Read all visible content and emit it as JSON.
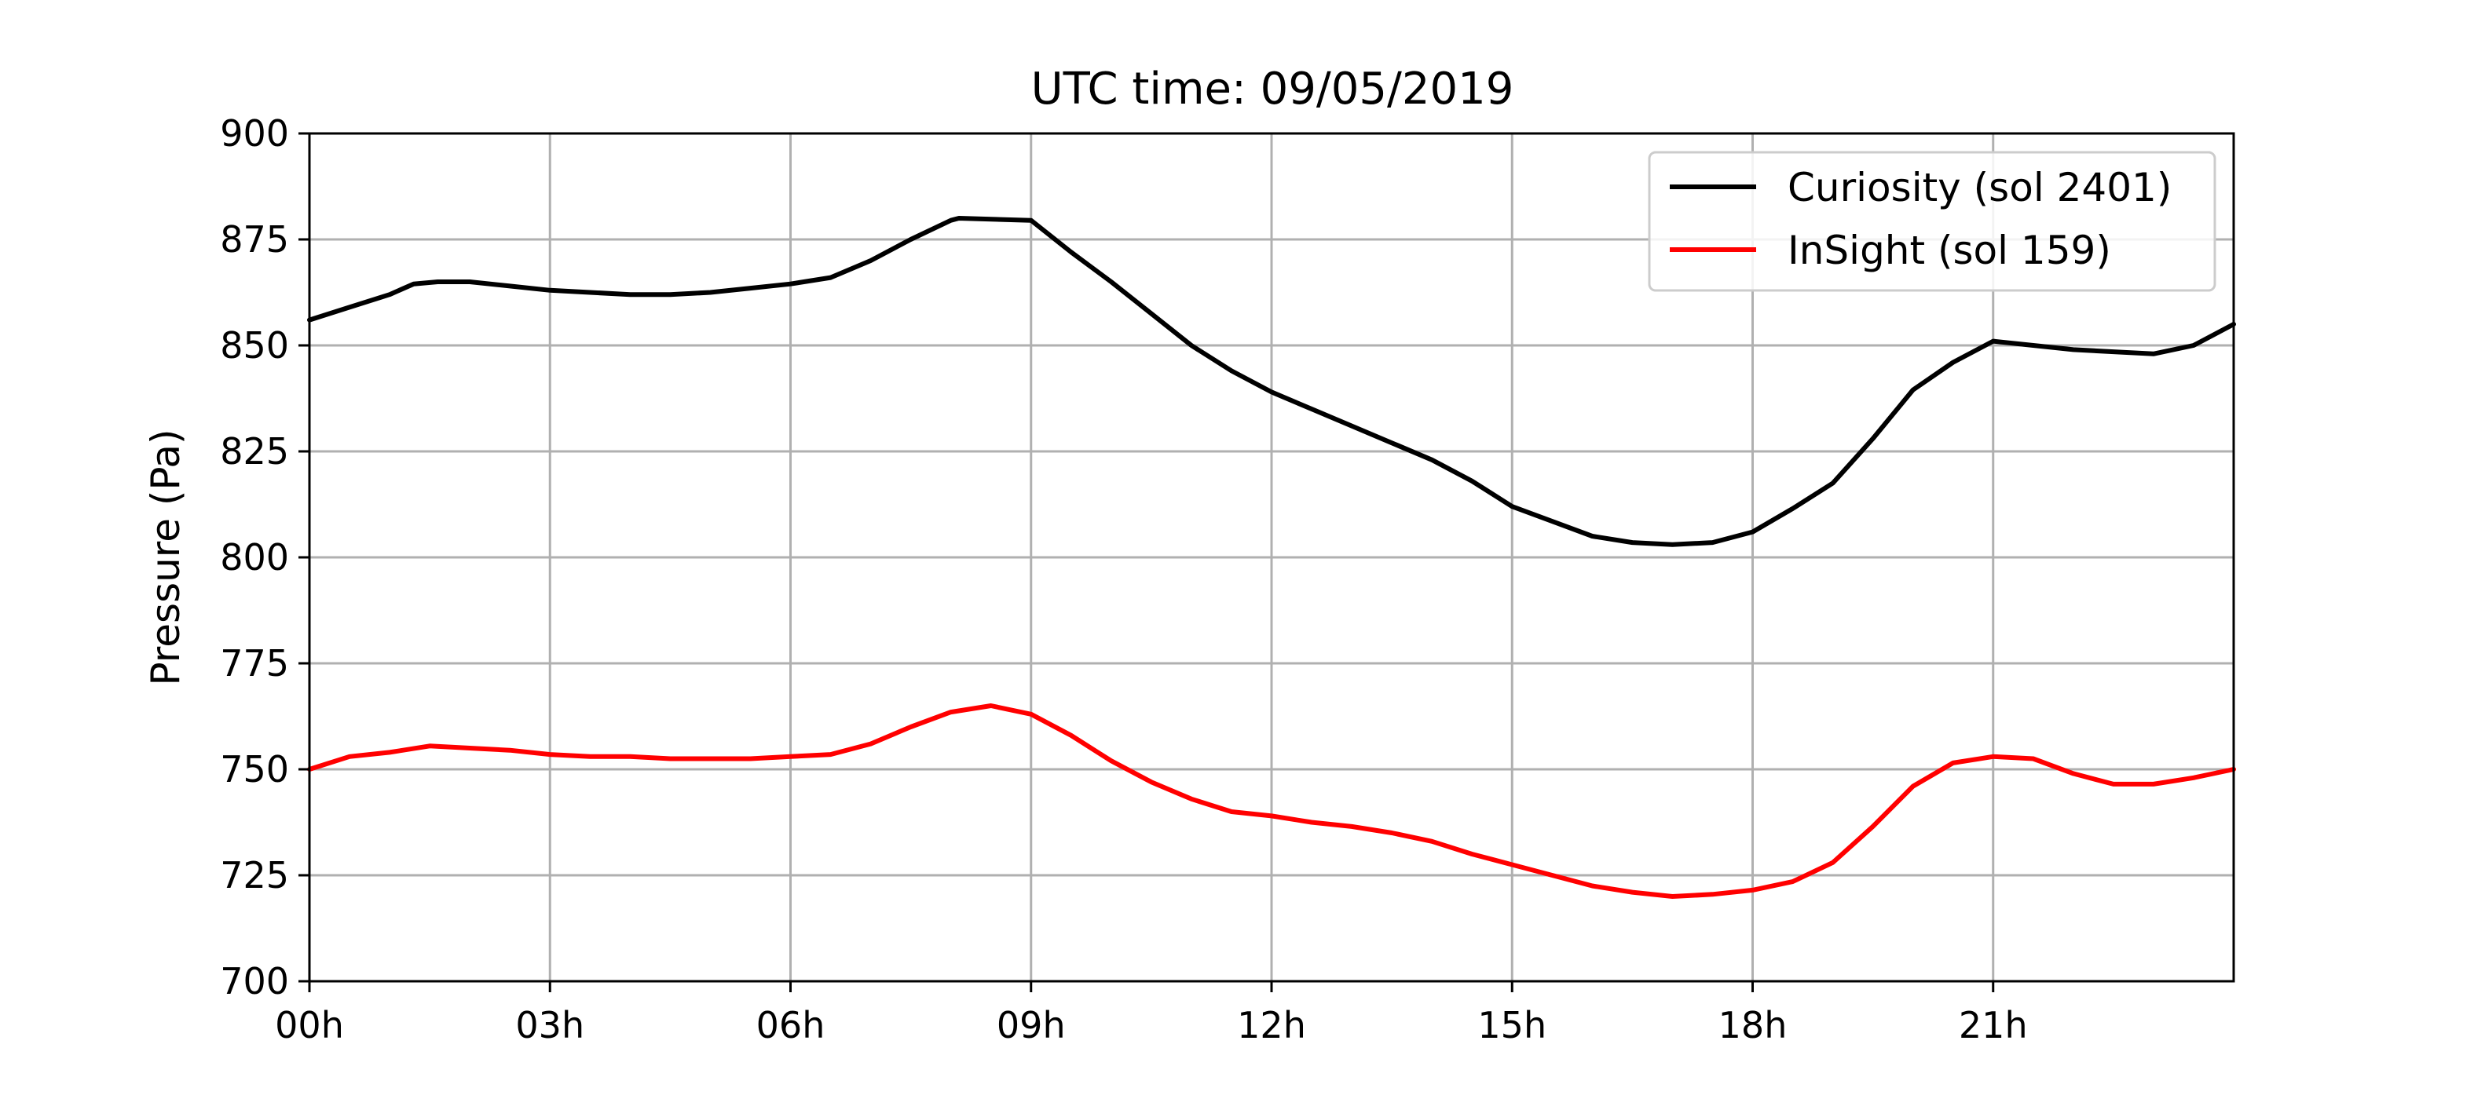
{
  "chart_data": {
    "type": "line",
    "title": "UTC time: 09/05/2019",
    "xlabel": "",
    "ylabel": "Pressure (Pa)",
    "xlim": [
      0,
      24
    ],
    "ylim": [
      700,
      900
    ],
    "grid": true,
    "legend_position": "top-right",
    "x_ticks": [
      0,
      3,
      6,
      9,
      12,
      15,
      18,
      21
    ],
    "x_tick_labels": [
      "00h",
      "03h",
      "06h",
      "09h",
      "12h",
      "15h",
      "18h",
      "21h"
    ],
    "y_ticks": [
      700,
      725,
      750,
      775,
      800,
      825,
      850,
      875,
      900
    ],
    "y_tick_labels": [
      "700",
      "725",
      "750",
      "775",
      "800",
      "825",
      "850",
      "875",
      "900"
    ],
    "series": [
      {
        "name": "Curiosity (sol 2401)",
        "color": "#000000",
        "x": [
          0,
          0.5,
          1.0,
          1.3,
          1.6,
          2.0,
          2.5,
          3.0,
          3.5,
          4.0,
          4.5,
          5.0,
          5.5,
          6.0,
          6.5,
          7.0,
          7.5,
          8.0,
          8.1,
          9.0,
          9.5,
          10.0,
          10.5,
          11.0,
          11.5,
          12.0,
          12.5,
          13.0,
          13.5,
          14.0,
          14.5,
          15.0,
          15.5,
          16.0,
          16.5,
          17.0,
          17.5,
          18.0,
          18.5,
          19.0,
          19.5,
          20.0,
          20.5,
          21.0,
          21.5,
          22.0,
          22.5,
          23.0,
          23.5,
          24.0
        ],
        "y": [
          856,
          859,
          862,
          864.5,
          865,
          865,
          864,
          863,
          862.5,
          862,
          862,
          862.5,
          863.5,
          864.5,
          866,
          870,
          875,
          879.5,
          880,
          879.5,
          872,
          865,
          857.5,
          850,
          844,
          839,
          835,
          831,
          827,
          823,
          818,
          812,
          808.5,
          805,
          803.5,
          803,
          803.5,
          806,
          811.5,
          817.5,
          828,
          839.5,
          846,
          851,
          850,
          849,
          848.5,
          848,
          850,
          855
        ]
      },
      {
        "name": "InSight (sol 159)",
        "color": "#ff0000",
        "x": [
          0,
          0.5,
          1.0,
          1.5,
          2.0,
          2.5,
          3.0,
          3.5,
          4.0,
          4.5,
          5.0,
          5.5,
          6.0,
          6.5,
          7.0,
          7.5,
          8.0,
          8.5,
          9.0,
          9.5,
          10.0,
          10.5,
          11.0,
          11.5,
          12.0,
          12.5,
          13.0,
          13.5,
          14.0,
          14.5,
          15.0,
          15.5,
          16.0,
          16.5,
          17.0,
          17.5,
          18.0,
          18.5,
          19.0,
          19.5,
          20.0,
          20.5,
          21.0,
          21.5,
          22.0,
          22.5,
          23.0,
          23.5,
          24.0
        ],
        "y": [
          750,
          753,
          754,
          755.5,
          755,
          754.5,
          753.5,
          753,
          753,
          752.5,
          752.5,
          752.5,
          753,
          753.5,
          756,
          760,
          763.5,
          765,
          763,
          758,
          752,
          747,
          743,
          740,
          739,
          737.5,
          736.5,
          735,
          733,
          730,
          727.5,
          725,
          722.5,
          721,
          720,
          720.5,
          721.5,
          723.5,
          728,
          736.5,
          746,
          751.5,
          753,
          752.5,
          749,
          746.5,
          746.5,
          748,
          750
        ]
      }
    ]
  }
}
